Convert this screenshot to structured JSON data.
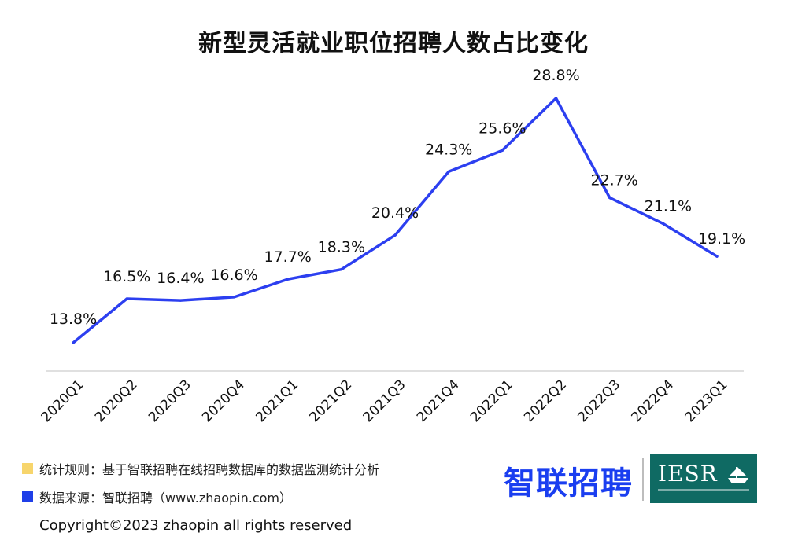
{
  "chart_data": {
    "type": "line",
    "title": "新型灵活就业职位招聘人数占比变化",
    "categories": [
      "2020Q1",
      "2020Q2",
      "2020Q3",
      "2020Q4",
      "2021Q1",
      "2021Q2",
      "2021Q3",
      "2021Q4",
      "2022Q1",
      "2022Q2",
      "2022Q3",
      "2022Q4",
      "2023Q1"
    ],
    "values": [
      13.8,
      16.5,
      16.4,
      16.6,
      17.7,
      18.3,
      20.4,
      24.3,
      25.6,
      28.8,
      22.7,
      21.1,
      19.1
    ],
    "value_labels": [
      "13.8%",
      "16.5%",
      "16.4%",
      "16.6%",
      "17.7%",
      "18.3%",
      "20.4%",
      "24.3%",
      "25.6%",
      "28.8%",
      "22.7%",
      "21.1%",
      "19.1%"
    ],
    "unit": "%",
    "line_color": "#2c3ff0",
    "grid": false,
    "legend": "none"
  },
  "notes": {
    "rule": "统计规则：基于智联招聘在线招聘数据库的数据监测统计分析",
    "rule_color": "#f7d56c",
    "source": "数据来源：智联招聘（www.zhaopin.com）",
    "source_color": "#1f3fe8"
  },
  "logos": {
    "zhaopin": "智联招聘",
    "iesr": "IESR"
  },
  "footer": {
    "copyright": "Copyright©2023 zhaopin all rights reserved"
  }
}
